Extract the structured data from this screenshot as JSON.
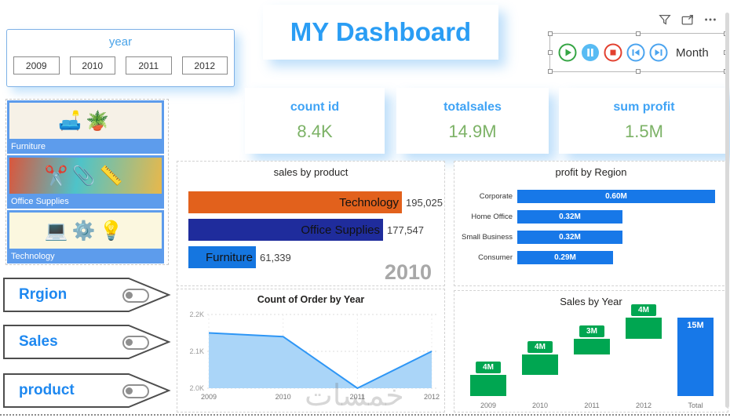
{
  "page": {
    "title": "MY Dashboard",
    "watermark": "خمسات"
  },
  "colors": {
    "accent_blue": "#2a9df4",
    "kpi_value_green": "#7cb266",
    "tile_background": "#5d9cec",
    "waterfall_green": "#00a651",
    "bar_blue": "#1778e8"
  },
  "toolbar": {
    "icons": [
      "filter",
      "focus-mode",
      "more-options"
    ]
  },
  "player": {
    "label": "Month",
    "buttons": [
      "play",
      "pause",
      "stop",
      "skip-previous",
      "skip-next"
    ]
  },
  "year_slicer": {
    "title": "year",
    "options": [
      "2009",
      "2010",
      "2011",
      "2012"
    ]
  },
  "kpis": [
    {
      "label": "count id",
      "value": "8.4K"
    },
    {
      "label": "totalsales",
      "value": "14.9M"
    },
    {
      "label": "sum profit",
      "value": "1.5M"
    }
  ],
  "tiles": [
    {
      "label": "Furniture",
      "icon": "🛋️🪴"
    },
    {
      "label": "Office Supplies",
      "icon": "✂️📎📏"
    },
    {
      "label": "Technology",
      "icon": "💻⚙️💡"
    }
  ],
  "nav_buttons": [
    {
      "label": "Rrgion"
    },
    {
      "label": "Sales"
    },
    {
      "label": "product"
    }
  ],
  "chart_data": [
    {
      "id": "sales_by_product",
      "type": "bar",
      "orientation": "horizontal",
      "title": "sales by product",
      "categories": [
        "Technology",
        "Office Supplies",
        "Furniture"
      ],
      "values": [
        195025,
        177547,
        61339
      ],
      "value_labels": [
        "195,025",
        "177,547",
        "61,339"
      ],
      "bar_colors": [
        "#e2611c",
        "#1f2c9c",
        "#1576e0"
      ],
      "xlim": [
        0,
        195025
      ],
      "annotation": "2010"
    },
    {
      "id": "profit_by_region",
      "type": "bar",
      "orientation": "horizontal",
      "title": "profit by Region",
      "categories": [
        "Corporate",
        "Home Office",
        "Small Business",
        "Consumer"
      ],
      "values": [
        0.6,
        0.32,
        0.32,
        0.29
      ],
      "value_labels": [
        "0.60M",
        "0.32M",
        "0.32M",
        "0.29M"
      ],
      "bar_color": "#1778e8",
      "xlim": [
        0,
        0.6
      ]
    },
    {
      "id": "count_of_order_by_year",
      "type": "area",
      "title": "Count of Order by Year",
      "x": [
        "2009",
        "2010",
        "2011",
        "2012"
      ],
      "y": [
        2150,
        2140,
        2000,
        2100
      ],
      "ylim": [
        2000,
        2200
      ],
      "yticks": [
        {
          "label": "2.2K",
          "value": 2200
        },
        {
          "label": "2.1K",
          "value": 2100
        },
        {
          "label": "2.0K",
          "value": 2000
        }
      ],
      "line_color": "#2e96f5",
      "fill_color": "#aad5f8",
      "grid": true
    },
    {
      "id": "sales_by_year",
      "type": "waterfall",
      "title": "Sales by Year",
      "categories": [
        "2009",
        "2010",
        "2011",
        "2012",
        "Total"
      ],
      "values": [
        4,
        4,
        3,
        4,
        15
      ],
      "labels": [
        "4M",
        "4M",
        "3M",
        "4M",
        "15M"
      ],
      "increase_color": "#00a651",
      "total_color": "#1778e8",
      "ylim": [
        0,
        15
      ]
    }
  ]
}
